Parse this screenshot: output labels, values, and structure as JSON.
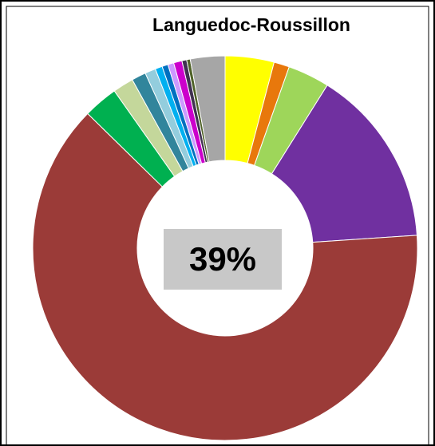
{
  "chart_data": {
    "type": "donut",
    "title": "Languedoc-Roussillon",
    "center_label": "39%",
    "values": [
      4.1,
      1.3,
      3.5,
      15.0,
      63.3,
      2.9,
      1.75,
      1.2,
      0.9,
      0.6,
      0.5,
      0.5,
      0.7,
      0.4,
      0.3,
      2.9
    ],
    "colors": [
      "#ffff00",
      "#e8780c",
      "#9ed65a",
      "#7030a0",
      "#9b3b38",
      "#00b050",
      "#c4d79b",
      "#31859c",
      "#93cddd",
      "#00b0f0",
      "#0070c0",
      "#cc99ff",
      "#cc00cc",
      "#403151",
      "#4f6228",
      "#a6a6a6"
    ]
  }
}
